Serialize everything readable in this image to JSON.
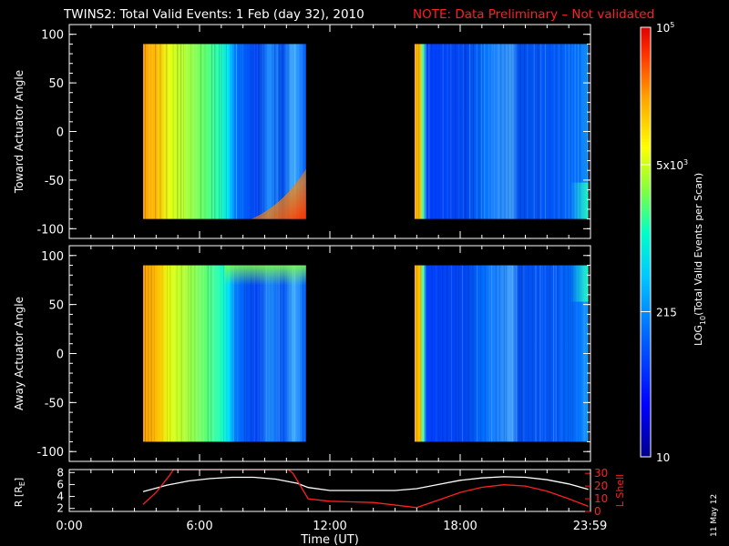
{
  "title": {
    "main": "TWINS2: Total Valid Events:  1 Feb (day  32), 2010",
    "note": "NOTE: Data Preliminary – Not validated",
    "note_color": "#ff2020"
  },
  "stamp": "11 May 12",
  "chart_data": [
    {
      "type": "heatmap",
      "ylabel": "Toward Actuator Angle",
      "ylim": [
        -110,
        110
      ],
      "yticks": [
        100,
        50,
        0,
        -50,
        -100
      ],
      "segments": [
        [
          3.4,
          10.9
        ],
        [
          15.9,
          23.9
        ]
      ],
      "data_y_range": [
        -90,
        90
      ]
    },
    {
      "type": "heatmap",
      "ylabel": "Away Actuator Angle",
      "ylim": [
        -110,
        110
      ],
      "yticks": [
        100,
        50,
        0,
        -50,
        -100
      ],
      "segments": [
        [
          3.4,
          10.9
        ],
        [
          15.9,
          23.9
        ]
      ],
      "data_y_range": [
        -90,
        90
      ]
    },
    {
      "type": "line",
      "ylabel": "R [R",
      "ylabel_sub": "E",
      "ylabel_end": "]",
      "ylim": [
        1.5,
        8.5
      ],
      "yticks": [
        2,
        4,
        6,
        8
      ],
      "y2label": "L Shell",
      "y2lim": [
        0,
        33
      ],
      "y2ticks": [
        0,
        10,
        20,
        30
      ],
      "xlabel": "Time (UT)",
      "xlim": [
        0,
        24
      ],
      "xticks": [
        "0:00",
        "6:00",
        "12:00",
        "18:00",
        "23:59"
      ],
      "xtick_values": [
        0,
        6,
        12,
        18,
        23.98
      ],
      "series": [
        {
          "color": "#ffffff",
          "x": [
            3.4,
            4.5,
            5.5,
            6.5,
            7.5,
            8.5,
            9.5,
            10.5,
            11.0,
            12.0,
            13.5,
            15.0,
            16.0,
            17.0,
            18.0,
            19.0,
            20.0,
            21.0,
            22.0,
            23.0,
            23.9
          ],
          "y": [
            4.8,
            5.9,
            6.6,
            7.0,
            7.2,
            7.2,
            6.9,
            6.2,
            5.5,
            5.0,
            5.0,
            5.0,
            5.3,
            6.0,
            6.7,
            7.1,
            7.3,
            7.2,
            6.8,
            6.1,
            5.2
          ]
        },
        {
          "color": "#ff2020",
          "axis": "right",
          "x": [
            3.4,
            4.0,
            4.6,
            4.8,
            10.1,
            10.3,
            11.0,
            12.0,
            14.0,
            16.0,
            17.0,
            18.0,
            19.0,
            20.0,
            21.0,
            22.0,
            23.0,
            23.9
          ],
          "y": [
            5.5,
            15,
            28,
            33,
            33,
            30,
            10,
            8,
            7,
            3,
            9,
            15,
            19,
            21,
            20,
            16,
            10,
            4
          ]
        }
      ]
    }
  ],
  "colorbar": {
    "label_main": "LOG",
    "label_sub": "10",
    "label_end": "(Total Valid  Events per Scan)",
    "ticks": [
      {
        "value": "10",
        "pos": 0.0
      },
      {
        "value": "215",
        "pos": 0.338
      },
      {
        "value": "5x10",
        "sup": "3",
        "pos": 0.68
      },
      {
        "value": "10",
        "sup": "5",
        "pos": 1.0
      }
    ],
    "colors": [
      "#00008c",
      "#0000ff",
      "#0064ff",
      "#00c8ff",
      "#00ffc8",
      "#80ff40",
      "#ffff00",
      "#ffa000",
      "#ff3000",
      "#e00000"
    ]
  }
}
